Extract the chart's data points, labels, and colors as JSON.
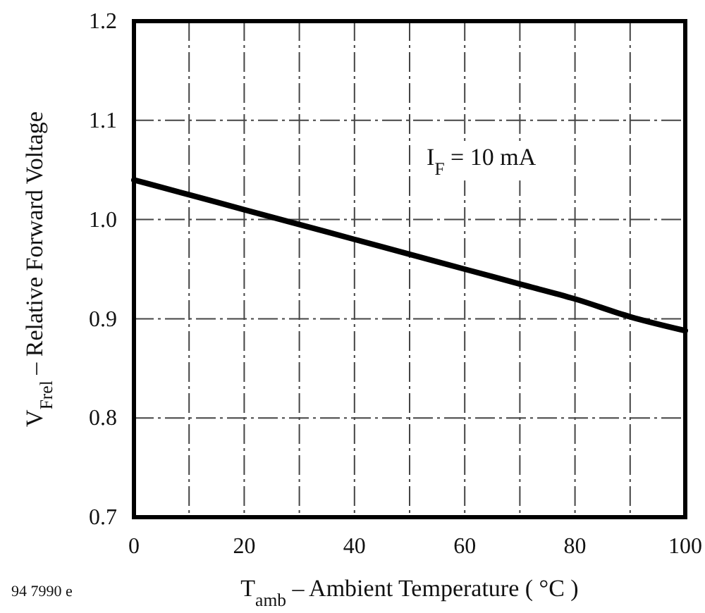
{
  "chart_data": {
    "type": "line",
    "xlabel": "T$_{amb}$ – Ambient Temperature ( °C )",
    "ylabel": "V$_{Frel}$ – Relative Forward Voltage",
    "x": [
      0,
      10,
      20,
      30,
      40,
      50,
      60,
      70,
      80,
      90,
      100
    ],
    "series": [
      {
        "color": "#000000",
        "values": [
          1.04,
          1.025,
          1.01,
          0.995,
          0.98,
          0.965,
          0.95,
          0.935,
          0.92,
          0.902,
          0.888
        ]
      }
    ],
    "xlim": [
      0,
      100
    ],
    "ylim": [
      0.7,
      1.2
    ],
    "xticks": [
      0,
      {
        "value": 10,
        "label": null
      },
      20,
      {
        "value": 30,
        "label": null
      },
      40,
      {
        "value": 50,
        "label": null
      },
      60,
      {
        "value": 70,
        "label": null
      },
      80,
      {
        "value": 90,
        "label": null
      },
      100
    ],
    "yticks": [
      0.7,
      0.8,
      0.9,
      {
        "value": 1,
        "label": "1.0"
      },
      1.1,
      1.2
    ],
    "grid": true,
    "line_style": "solid",
    "marker": "none",
    "annotations": [
      "I$_{F}$ = 10 mA",
      "94 7990 e"
    ]
  }
}
